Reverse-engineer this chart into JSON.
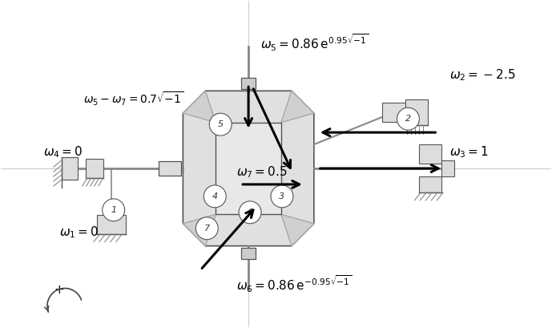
{
  "fig_width": 6.89,
  "fig_height": 4.09,
  "dpi": 100,
  "bg_color": "#ffffff",
  "colors": {
    "line": "#555555",
    "fill_oct": "#e0e0e0",
    "fill_rect": "#e8e8e8",
    "fill_light": "#f0f0f0",
    "hatch": "#888888",
    "arrow": "#000000",
    "text": "#000000",
    "diag": "#aaaaaa",
    "shaft": "#888888"
  },
  "labels": {
    "omega5": "$\\omega_5 = 0.86\\,\\mathrm{e}^{0.95\\sqrt{-1}}$",
    "omega2": "$\\omega_2 = -2.5$",
    "omega57": "$\\omega_5 - \\omega_7 = 0.7\\sqrt{-1}$",
    "omega4": "$\\omega_4 = 0$",
    "omega7": "$\\omega_7 = 0.5$",
    "omega3": "$\\omega_3 = 1$",
    "omega1": "$\\omega_1 = 0$",
    "omega6": "$\\omega_6 = 0.86\\,\\mathrm{e}^{-0.95\\sqrt{-1}}$",
    "plus": "$+$"
  }
}
